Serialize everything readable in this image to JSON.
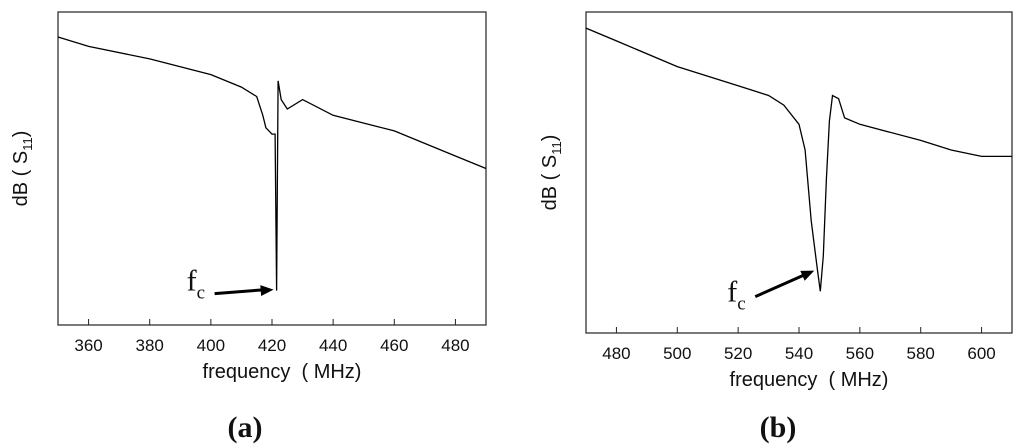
{
  "chart_data": [
    {
      "type": "line",
      "label": "(a)",
      "xlabel": "frequency  ( MHz)",
      "ylabel": {
        "text": "dB ( S",
        "subscript": "11",
        "end": ")"
      },
      "annotation": {
        "text": "f",
        "subscript": "c",
        "x": 421.5,
        "y": 11
      },
      "xlim": [
        350,
        490
      ],
      "xticks": [
        360,
        380,
        400,
        420,
        440,
        460,
        480
      ],
      "ylim": [
        0,
        100
      ],
      "color": "#000000",
      "series": [
        {
          "name": "S11",
          "color": "#000000",
          "x": [
            350,
            360,
            380,
            400,
            410,
            415,
            417,
            418,
            420,
            421,
            421.5,
            422,
            423,
            425,
            430,
            440,
            460,
            480,
            490
          ],
          "values": [
            92,
            89,
            85,
            80,
            76,
            73,
            67,
            63,
            61,
            61,
            11,
            78,
            72,
            69,
            72,
            67,
            62,
            54,
            50
          ]
        }
      ]
    },
    {
      "type": "line",
      "label": "(b)",
      "xlabel": "frequency  ( MHz)",
      "ylabel": {
        "text": "dB ( S",
        "subscript": "11",
        "end": ")"
      },
      "annotation": {
        "text": "f",
        "subscript": "c",
        "x": 546,
        "y": 16
      },
      "xlim": [
        470,
        610
      ],
      "xticks": [
        480,
        500,
        520,
        540,
        560,
        580,
        600
      ],
      "ylim": [
        0,
        100
      ],
      "color": "#000000",
      "series": [
        {
          "name": "S11",
          "color": "#000000",
          "x": [
            470,
            480,
            500,
            520,
            530,
            535,
            540,
            542,
            544,
            546,
            547,
            548,
            549,
            550,
            551,
            553,
            555,
            560,
            580,
            590,
            600,
            610
          ],
          "values": [
            95,
            91,
            83,
            77,
            74,
            71,
            65,
            57,
            35,
            20,
            13,
            24,
            48,
            66,
            74,
            73,
            67,
            65,
            60,
            57,
            55,
            55
          ]
        }
      ]
    }
  ]
}
